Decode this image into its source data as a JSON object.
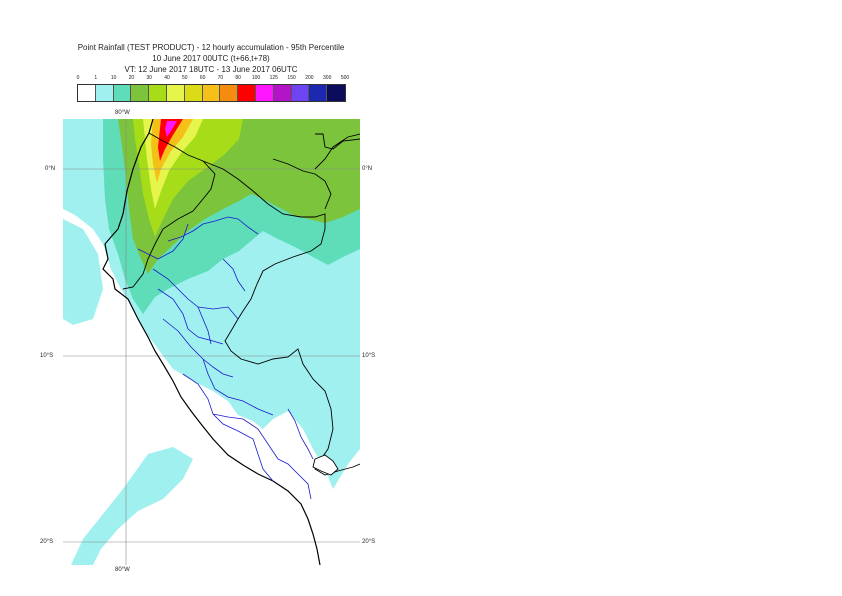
{
  "title": {
    "line1": "Point Rainfall (TEST PRODUCT) - 12 hourly accumulation - 95th Percentile",
    "line2": "10 June 2017 00UTC (t+66,t+78)",
    "line3": "VT: 12 June 2017 18UTC - 13 June 2017 06UTC"
  },
  "legend": {
    "thresholds": [
      "0",
      "1",
      "10",
      "20",
      "30",
      "40",
      "50",
      "60",
      "70",
      "80",
      "100",
      "125",
      "150",
      "200",
      "300",
      "500"
    ],
    "colors": [
      "#ffffff",
      "#9ff0ef",
      "#5fdcb8",
      "#7cc43c",
      "#a6dc18",
      "#e6f54c",
      "#dadc18",
      "#f5c018",
      "#f58c10",
      "#ff0000",
      "#ff18ff",
      "#b414c8",
      "#6e44f0",
      "#1c28b0",
      "#0c0c5c"
    ]
  },
  "map": {
    "coord_labels": {
      "top_lon": "80°W",
      "bottom_lon": "80°W",
      "lat_0_left": "0°N",
      "lat_0_right": "0°N",
      "lat_10_left": "10°S",
      "lat_10_right": "10°S",
      "lat_20_left": "20°S",
      "lat_20_right": "20°S"
    },
    "colors": {
      "sea_background": "#ffffff",
      "coast_outline": "#000000",
      "region_borders": "#1a1acc",
      "graticule": "#888888"
    }
  }
}
